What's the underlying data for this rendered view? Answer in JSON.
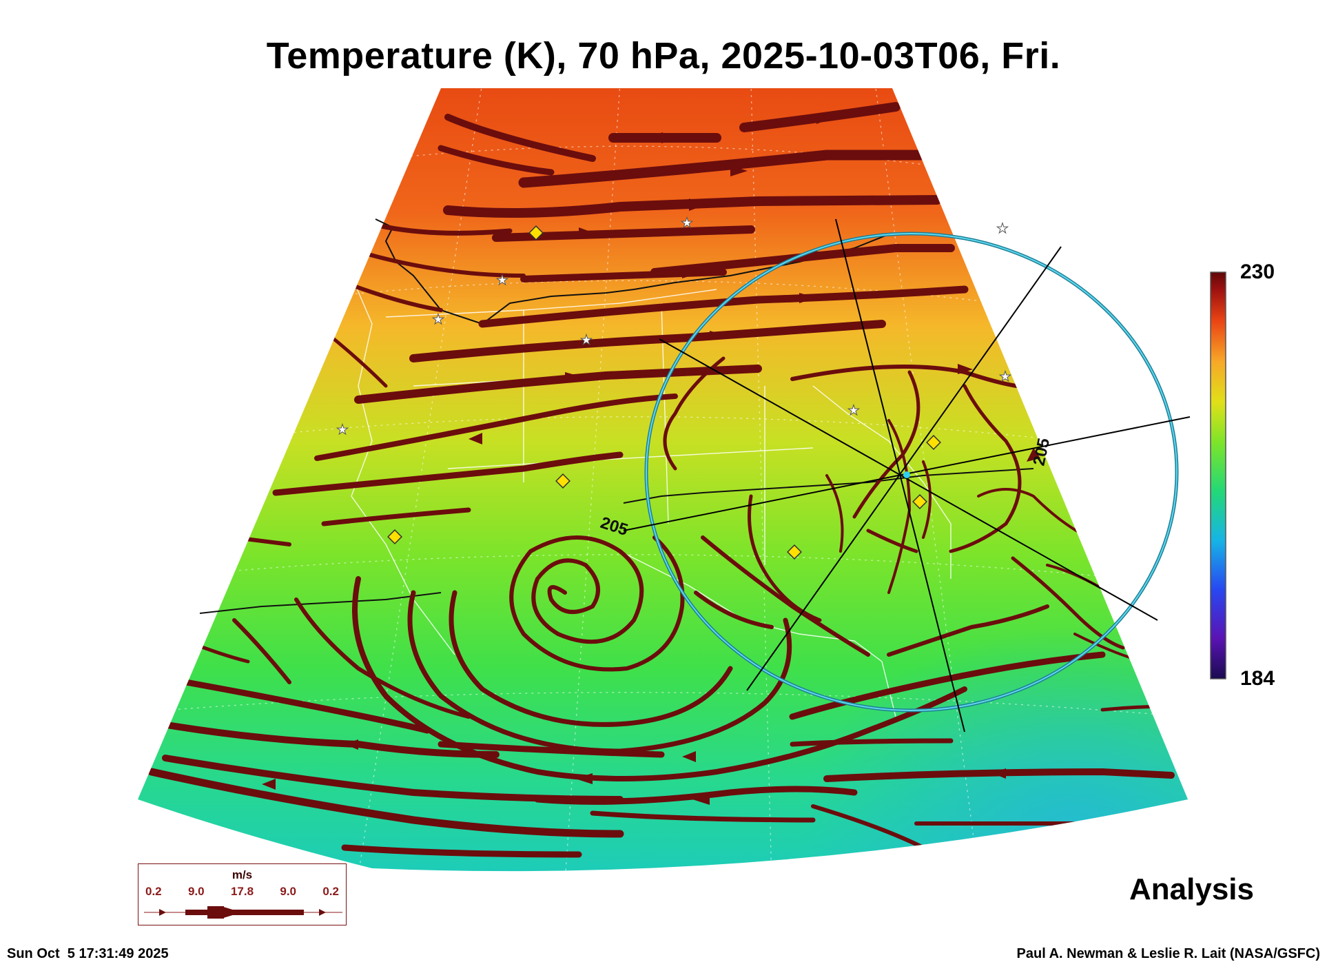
{
  "title": "Temperature (K), 70 hPa, 2025-10-03T06, Fri.",
  "colorbar": {
    "max": "230",
    "min": "184"
  },
  "contour_labels": [
    "205",
    "205"
  ],
  "legend": {
    "unit": "m/s",
    "values": [
      "0.2",
      "9.0",
      "17.8",
      "9.0",
      "0.2"
    ]
  },
  "analysis_label": "Analysis",
  "footer": {
    "timestamp": "Sun Oct  5 17:31:49 2025",
    "credit": "Paul A. Newman & Leslie R. Lait (NASA/GSFC)"
  },
  "colors": {
    "streamline": "#6b0d0d",
    "ring": "#35b8d0",
    "marker_diamond": "#ffe000",
    "background": "#ffffff"
  },
  "chart_data": {
    "type": "heatmap",
    "variable": "Temperature (K)",
    "level_hpa": 70,
    "valid_time": "2025-10-03T06",
    "colorbar_range": [
      184,
      230
    ],
    "contour_value": 205,
    "legend_wind_speeds_ms": [
      0.2,
      9.0,
      17.8,
      9.0,
      0.2
    ]
  }
}
